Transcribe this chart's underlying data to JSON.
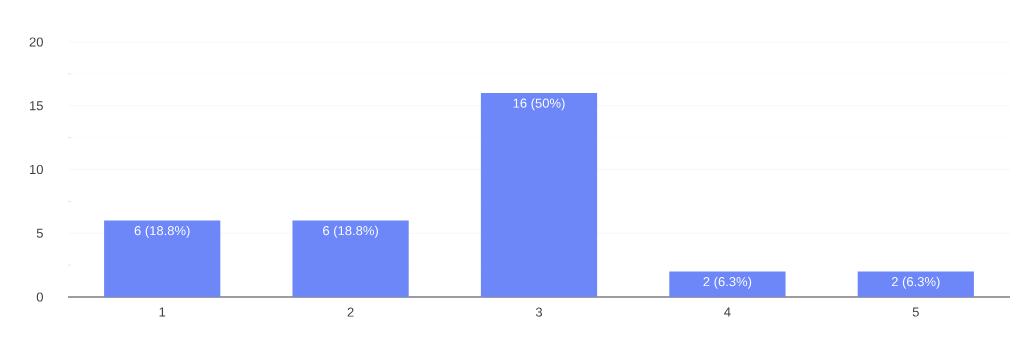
{
  "chart_data": {
    "type": "bar",
    "categories": [
      "1",
      "2",
      "3",
      "4",
      "5"
    ],
    "values": [
      6,
      6,
      16,
      2,
      2
    ],
    "value_labels": [
      "6 (18.8%)",
      "6 (18.8%)",
      "16 (50%)",
      "2 (6.3%)",
      "2 (6.3%)"
    ],
    "color": "#6d87f8",
    "ylim": [
      0,
      20
    ],
    "yticks": [
      0,
      5,
      10,
      15,
      20
    ],
    "grid": "y"
  }
}
